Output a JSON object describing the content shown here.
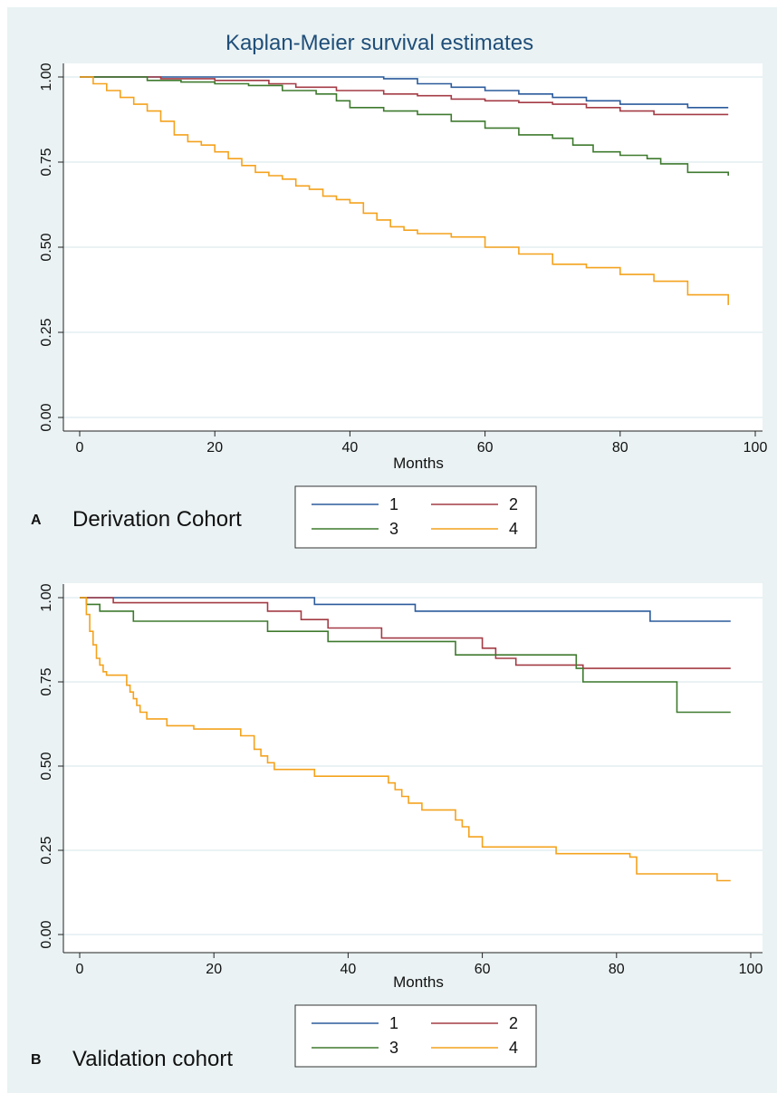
{
  "chart_data": [
    {
      "type": "line",
      "title": "Kaplan-Meier survival estimates",
      "xlabel": "Months",
      "ylabel": "",
      "xlim": [
        0,
        100
      ],
      "ylim": [
        0,
        1
      ],
      "xticks": [
        "0",
        "20",
        "40",
        "60",
        "80",
        "100"
      ],
      "yticks": [
        "0.00",
        "0.25",
        "0.50",
        "0.75",
        "1.00"
      ],
      "grid": true,
      "panel_letter": "A",
      "caption": "Derivation Cohort",
      "legend_position": "below",
      "series": [
        {
          "name": "1",
          "color": "#2b5b9c",
          "x": [
            0,
            40,
            45,
            50,
            55,
            60,
            65,
            70,
            75,
            80,
            85,
            90,
            96
          ],
          "y": [
            1,
            1,
            0.995,
            0.98,
            0.97,
            0.96,
            0.95,
            0.94,
            0.93,
            0.92,
            0.92,
            0.91,
            0.91
          ]
        },
        {
          "name": "2",
          "color": "#a43b45",
          "x": [
            0,
            12,
            20,
            28,
            32,
            38,
            45,
            50,
            55,
            60,
            65,
            70,
            75,
            80,
            85,
            90,
            96
          ],
          "y": [
            1,
            0.995,
            0.99,
            0.98,
            0.97,
            0.96,
            0.95,
            0.945,
            0.935,
            0.93,
            0.925,
            0.92,
            0.91,
            0.9,
            0.89,
            0.89,
            0.89
          ]
        },
        {
          "name": "3",
          "color": "#3e7a2e",
          "x": [
            0,
            10,
            15,
            20,
            25,
            30,
            35,
            38,
            40,
            45,
            50,
            55,
            60,
            65,
            70,
            73,
            76,
            80,
            84,
            86,
            90,
            96
          ],
          "y": [
            1,
            0.99,
            0.985,
            0.98,
            0.975,
            0.96,
            0.95,
            0.93,
            0.91,
            0.9,
            0.89,
            0.87,
            0.85,
            0.83,
            0.82,
            0.8,
            0.78,
            0.77,
            0.76,
            0.745,
            0.72,
            0.71
          ]
        },
        {
          "name": "4",
          "color": "#f4a21d",
          "x": [
            0,
            2,
            4,
            6,
            8,
            10,
            12,
            14,
            16,
            18,
            20,
            22,
            24,
            26,
            28,
            30,
            32,
            34,
            36,
            38,
            40,
            42,
            44,
            46,
            48,
            50,
            55,
            60,
            65,
            70,
            75,
            80,
            85,
            90,
            96
          ],
          "y": [
            1,
            0.98,
            0.96,
            0.94,
            0.92,
            0.9,
            0.87,
            0.83,
            0.81,
            0.8,
            0.78,
            0.76,
            0.74,
            0.72,
            0.71,
            0.7,
            0.68,
            0.67,
            0.65,
            0.64,
            0.63,
            0.6,
            0.58,
            0.56,
            0.55,
            0.54,
            0.53,
            0.5,
            0.48,
            0.45,
            0.44,
            0.42,
            0.4,
            0.36,
            0.33
          ]
        }
      ]
    },
    {
      "type": "line",
      "title": "",
      "xlabel": "Months",
      "ylabel": "",
      "xlim": [
        0,
        100
      ],
      "ylim": [
        0,
        1
      ],
      "xticks": [
        "0",
        "20",
        "40",
        "60",
        "80",
        "100"
      ],
      "yticks": [
        "0.00",
        "0.25",
        "0.50",
        "0.75",
        "1.00"
      ],
      "grid": true,
      "panel_letter": "B",
      "caption": "Validation cohort",
      "legend_position": "below",
      "series": [
        {
          "name": "1",
          "color": "#2b5b9c",
          "x": [
            0,
            35,
            50,
            85,
            97
          ],
          "y": [
            1,
            0.98,
            0.96,
            0.93,
            0.93
          ]
        },
        {
          "name": "2",
          "color": "#a43b45",
          "x": [
            0,
            5,
            28,
            33,
            37,
            45,
            60,
            62,
            65,
            75,
            97
          ],
          "y": [
            1,
            0.985,
            0.96,
            0.935,
            0.91,
            0.88,
            0.85,
            0.82,
            0.8,
            0.79,
            0.79
          ]
        },
        {
          "name": "3",
          "color": "#3e7a2e",
          "x": [
            0,
            1,
            3,
            8,
            28,
            37,
            56,
            74,
            75,
            89,
            97
          ],
          "y": [
            1,
            0.98,
            0.96,
            0.93,
            0.9,
            0.87,
            0.83,
            0.79,
            0.75,
            0.66,
            0.66
          ]
        },
        {
          "name": "4",
          "color": "#f4a21d",
          "x": [
            0,
            1,
            1.5,
            2,
            2.5,
            3,
            3.5,
            4,
            6,
            7,
            7.5,
            8,
            8.5,
            9,
            10,
            13,
            17,
            24,
            26,
            27,
            28,
            29,
            35,
            46,
            47,
            48,
            49,
            51,
            56,
            57,
            58,
            60,
            71,
            82,
            83,
            95,
            97
          ],
          "y": [
            1,
            0.95,
            0.9,
            0.86,
            0.82,
            0.8,
            0.78,
            0.77,
            0.77,
            0.74,
            0.72,
            0.7,
            0.68,
            0.66,
            0.64,
            0.62,
            0.61,
            0.59,
            0.55,
            0.53,
            0.51,
            0.49,
            0.47,
            0.45,
            0.43,
            0.41,
            0.39,
            0.37,
            0.34,
            0.32,
            0.29,
            0.26,
            0.24,
            0.23,
            0.18,
            0.16,
            0.16
          ]
        }
      ]
    }
  ]
}
